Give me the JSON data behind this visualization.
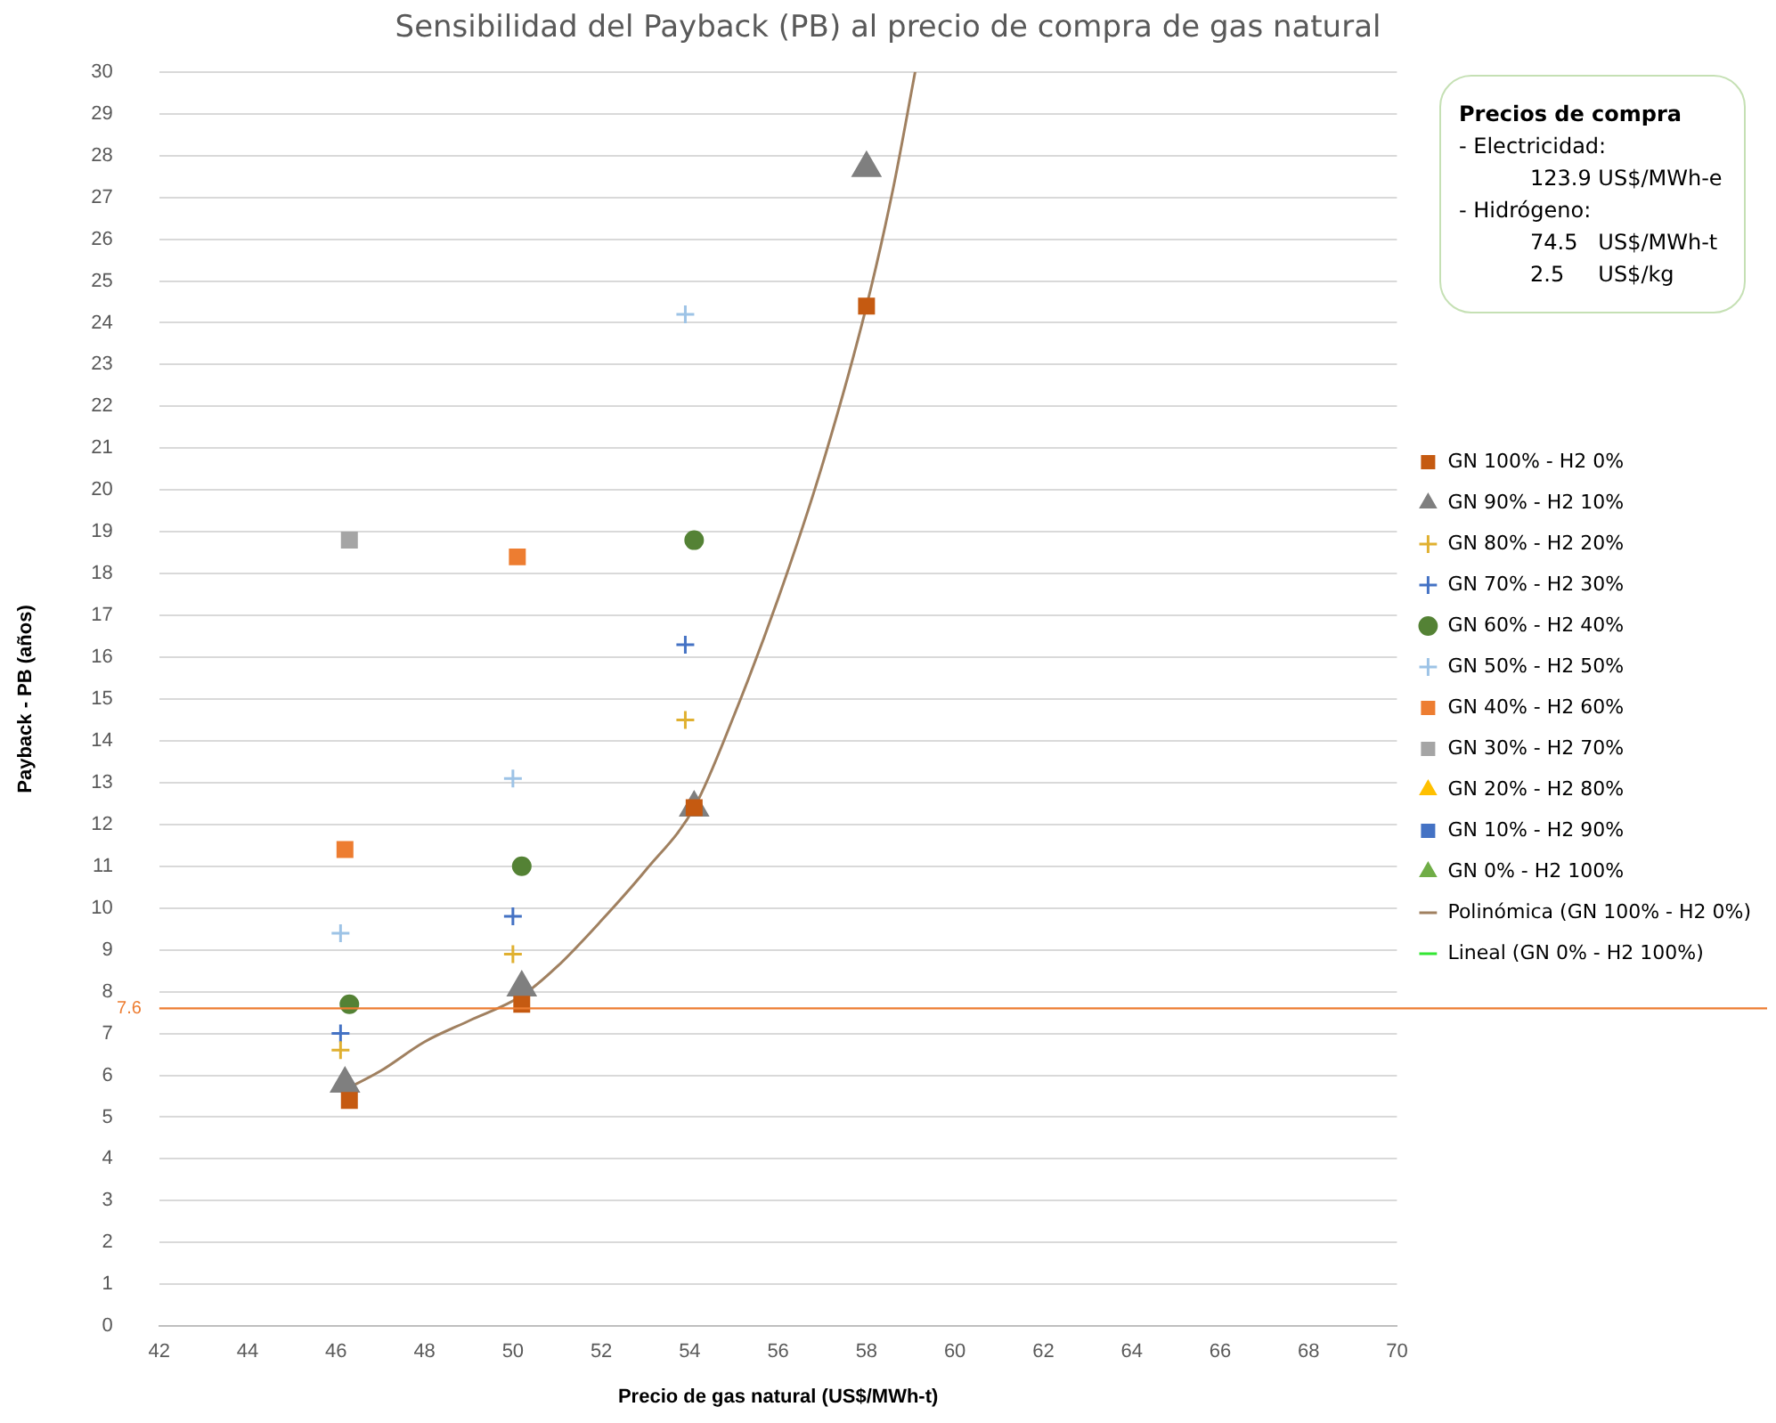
{
  "chart_data": {
    "type": "scatter",
    "title": "Sensibilidad del Payback (PB) al precio de compra de gas natural",
    "xlabel": "Precio de gas natural (US$/MWh-t)",
    "ylabel": "Payback - PB (años)",
    "xlim": [
      42,
      70
    ],
    "xticks": [
      42,
      44,
      46,
      48,
      50,
      52,
      54,
      56,
      58,
      60,
      62,
      64,
      66,
      68,
      70
    ],
    "ylim": [
      0,
      30
    ],
    "yticks": [
      0,
      1,
      2,
      3,
      4,
      5,
      6,
      7,
      8,
      9,
      10,
      11,
      12,
      13,
      14,
      15,
      16,
      17,
      18,
      19,
      20,
      21,
      22,
      23,
      24,
      25,
      26,
      27,
      28,
      29,
      30
    ],
    "grid": "y",
    "legend": "right",
    "ref_lines": [
      {
        "axis": "y",
        "value": 7.6,
        "label": "7.6",
        "color": "#ed7d31"
      }
    ],
    "annotations": [
      "Precios de compra",
      "- Electricidad:",
      "123.9 US$/MWh-e",
      "- Hidrógeno:",
      "74.5   US$/MWh-t",
      "2.5     US$/kg"
    ],
    "series": [
      {
        "name": "GN 100% - H2 0%",
        "color": "#c55a11",
        "marker": "square",
        "x": [
          46.3,
          50.2,
          54.1,
          58.0
        ],
        "values": [
          5.4,
          7.7,
          12.4,
          24.4
        ]
      },
      {
        "name": "GN 90% - H2 10%",
        "color": "#7f7f7f",
        "marker": "triangle",
        "x": [
          46.2,
          50.2,
          54.1,
          58.0
        ],
        "values": [
          5.8,
          8.1,
          12.4,
          27.7
        ]
      },
      {
        "name": "GN 80% - H2 20%",
        "color": "#e0b030",
        "marker": "cross",
        "x": [
          46.1,
          50.0,
          53.9
        ],
        "values": [
          6.6,
          8.9,
          14.5
        ]
      },
      {
        "name": "GN 70% - H2 30%",
        "color": "#4472c4",
        "marker": "cross",
        "x": [
          46.1,
          50.0,
          53.9
        ],
        "values": [
          7.0,
          9.8,
          16.3
        ]
      },
      {
        "name": "GN 60% - H2 40%",
        "color": "#548235",
        "marker": "circle",
        "x": [
          46.3,
          50.2,
          54.1
        ],
        "values": [
          7.7,
          11.0,
          18.8
        ]
      },
      {
        "name": "GN 50% - H2 50%",
        "color": "#9dc3e6",
        "marker": "cross",
        "x": [
          46.1,
          50.0,
          53.9
        ],
        "values": [
          9.4,
          13.1,
          24.2
        ]
      },
      {
        "name": "GN 40% - H2 60%",
        "color": "#ed7d31",
        "marker": "square",
        "x": [
          46.2,
          50.1
        ],
        "values": [
          11.4,
          18.4
        ]
      },
      {
        "name": "GN 30% - H2 70%",
        "color": "#a5a5a5",
        "marker": "square",
        "x": [
          46.3
        ],
        "values": [
          18.8
        ]
      },
      {
        "name": "GN 20% - H2 80%",
        "color": "#ffc000",
        "marker": "triangle"
      },
      {
        "name": "GN 10% - H2 90%",
        "color": "#4472c4",
        "marker": "square"
      },
      {
        "name": "GN 0% - H2 100%",
        "color": "#70ad47",
        "marker": "triangle"
      },
      {
        "name": "Polinómica (GN 100% - H2 0%)",
        "type": "line",
        "color": "#a08060",
        "marker": "none",
        "x": [
          46.1,
          47,
          48,
          49,
          50.2,
          51,
          52,
          53,
          54.1,
          55,
          56,
          57,
          58,
          58.6,
          59.1
        ],
        "values": [
          5.6,
          6.1,
          6.8,
          7.3,
          7.9,
          8.6,
          9.7,
          10.9,
          12.4,
          14.6,
          17.4,
          20.6,
          24.4,
          27.2,
          30
        ]
      },
      {
        "name": "Lineal (GN 0% - H2 100%)",
        "type": "line",
        "color": "#33e633",
        "marker": "none"
      }
    ]
  }
}
